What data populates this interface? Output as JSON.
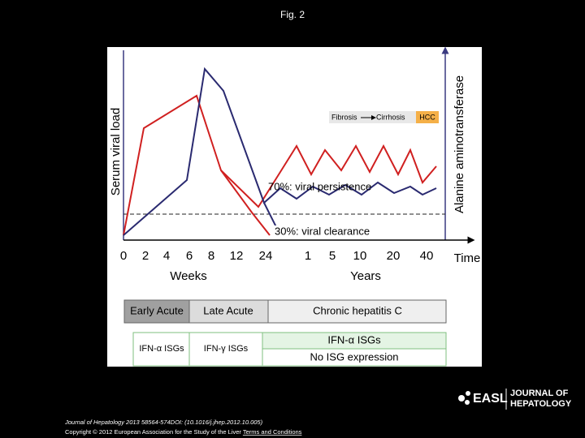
{
  "header": {
    "title": "Fig. 2"
  },
  "figure": {
    "y_axis_left": "Serum viral load",
    "y_axis_right": "Alanine aminotransferase",
    "x_ticks_weeks": [
      0,
      2,
      4,
      6,
      8,
      12,
      24
    ],
    "x_ticks_years": [
      1,
      5,
      10,
      20,
      40
    ],
    "x_unit": "Time",
    "weeks_label": "Weeks",
    "years_label": "Years",
    "annotations": [
      "70%: viral persistence",
      "30%: viral clearance"
    ],
    "progression": [
      "Fibrosis",
      "Cirrhosis",
      "HCC"
    ],
    "phases": [
      "Early Acute",
      "Late Acute",
      "Chronic hepatitis C"
    ],
    "isgs": [
      "IFN-α ISGs",
      "IFN-γ ISGs",
      "IFN-α ISGs",
      "No ISG expression"
    ]
  },
  "footer": {
    "citation": "Journal of Hepatology 2013 58564-574DOI: (10.1016/j.jhep.2012.10.005)",
    "copyright": "Copyright © 2012 European Association for the Study of the Liver",
    "terms": "Terms and Conditions",
    "logo": [
      "EASL",
      "JOURNAL OF",
      "HEPATOLOGY"
    ]
  }
}
